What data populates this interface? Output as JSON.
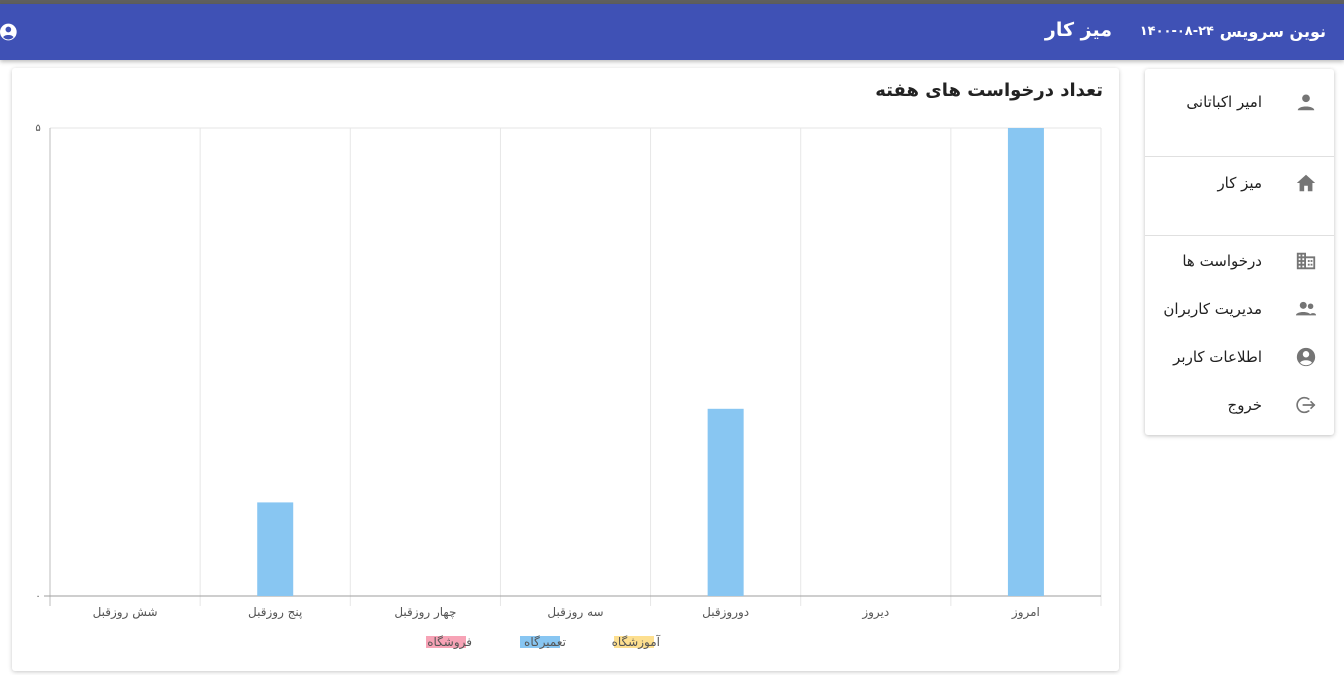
{
  "appbar": {
    "brand": "نوین سرویس",
    "date": "۱۴۰۰-۰۸-۲۴",
    "title": "میز کار",
    "account_icon": "account-circle-icon"
  },
  "sidebar": {
    "user": {
      "name": "امیر اکباتانی",
      "icon": "person-icon"
    },
    "items": [
      {
        "label": "میز کار",
        "icon": "home-icon"
      },
      {
        "label": "درخواست ها",
        "icon": "building-icon"
      },
      {
        "label": "مدیریت کاربران",
        "icon": "manage-users-icon"
      },
      {
        "label": "اطلاعات کاربر",
        "icon": "account-circle-icon"
      },
      {
        "label": "خروج",
        "icon": "logout-icon"
      }
    ]
  },
  "chart_data": {
    "type": "bar",
    "title": "تعداد درخواست های هفته",
    "categories": [
      "شش روزقبل",
      "پنج روزقبل",
      "چهار روزقبل",
      "سه روزقبل",
      "دوروزقبل",
      "دیروز",
      "امروز"
    ],
    "series": [
      {
        "name": "فروشگاه",
        "color": "#f7a3b6",
        "values": [
          0,
          0,
          0,
          0,
          0,
          0,
          0
        ]
      },
      {
        "name": "تعمیرگاه",
        "color": "#88c6f2",
        "values": [
          0,
          1,
          0,
          0,
          2,
          0,
          5
        ]
      },
      {
        "name": "آموزشگاه",
        "color": "#fddf8f",
        "values": [
          0,
          0,
          0,
          0,
          0,
          0,
          0
        ]
      }
    ],
    "ylim": [
      0,
      5
    ],
    "yticks": [
      "۰",
      "۵"
    ],
    "grid": true,
    "legend": "bottom"
  }
}
